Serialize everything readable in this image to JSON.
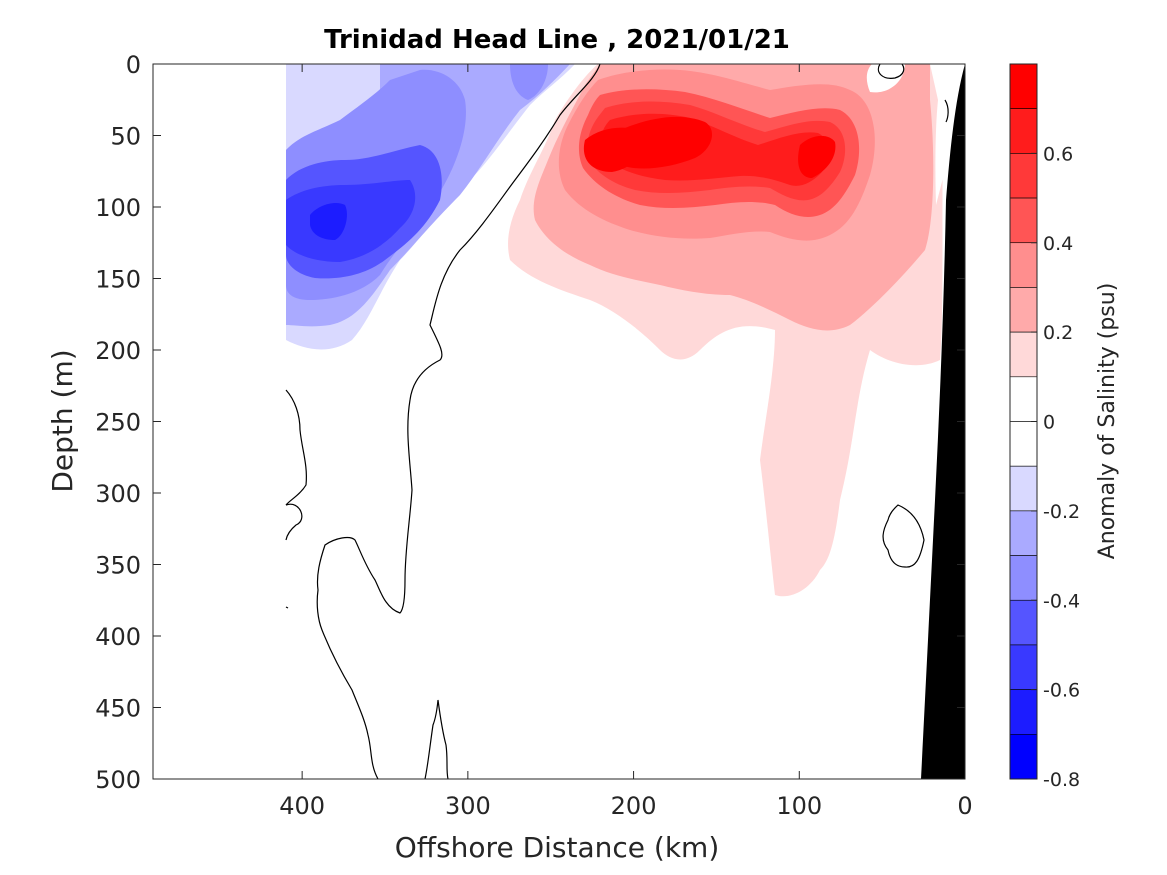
{
  "chart_data": {
    "type": "heatmap",
    "title": "Trinidad Head Line , 2021/01/21",
    "xlabel": "Offshore Distance (km)",
    "ylabel": "Depth (m)",
    "xlim": [
      490,
      0
    ],
    "ylim": [
      0,
      500
    ],
    "x_ticks": [
      "400",
      "300",
      "200",
      "100",
      "0"
    ],
    "y_ticks": [
      "0",
      "50",
      "100",
      "150",
      "200",
      "250",
      "300",
      "350",
      "400",
      "450",
      "500"
    ],
    "colorbar": {
      "label": "Anomaly of Salinity (psu)",
      "range": [
        -0.8,
        0.8
      ],
      "ticks": [
        "0.6",
        "0.4",
        "0.2",
        "0",
        "-0.2",
        "-0.4",
        "-0.6",
        "-0.8"
      ],
      "levels": [
        {
          "from": 0.7,
          "to": 0.8,
          "color": "#ff0000"
        },
        {
          "from": 0.6,
          "to": 0.7,
          "color": "#ff1c1c"
        },
        {
          "from": 0.5,
          "to": 0.6,
          "color": "#ff3939"
        },
        {
          "from": 0.4,
          "to": 0.5,
          "color": "#ff5555"
        },
        {
          "from": 0.3,
          "to": 0.4,
          "color": "#ff8e8e"
        },
        {
          "from": 0.2,
          "to": 0.3,
          "color": "#ffaaaa"
        },
        {
          "from": 0.1,
          "to": 0.2,
          "color": "#ffd9d9"
        },
        {
          "from": 0.0,
          "to": 0.1,
          "color": "#ffffff"
        },
        {
          "from": -0.1,
          "to": 0.0,
          "color": "#ffffff"
        },
        {
          "from": -0.2,
          "to": -0.1,
          "color": "#d9d9ff"
        },
        {
          "from": -0.3,
          "to": -0.2,
          "color": "#aaaaff"
        },
        {
          "from": -0.4,
          "to": -0.3,
          "color": "#8e8eff"
        },
        {
          "from": -0.5,
          "to": -0.4,
          "color": "#5555ff"
        },
        {
          "from": -0.6,
          "to": -0.5,
          "color": "#3939ff"
        },
        {
          "from": -0.7,
          "to": -0.6,
          "color": "#1c1cff"
        },
        {
          "from": -0.8,
          "to": -0.7,
          "color": "#0000ff"
        }
      ]
    },
    "features": [
      {
        "name": "positive-core-nearshore",
        "x_km": 90,
        "depth_m": 65,
        "anomaly": 0.7
      },
      {
        "name": "positive-core-midshelf",
        "x_km": 180,
        "depth_m": 65,
        "anomaly": 0.75
      },
      {
        "name": "negative-core-offshore",
        "x_km": 385,
        "depth_m": 112,
        "anomaly": -0.6
      }
    ],
    "seafloor_color": "#000000"
  }
}
